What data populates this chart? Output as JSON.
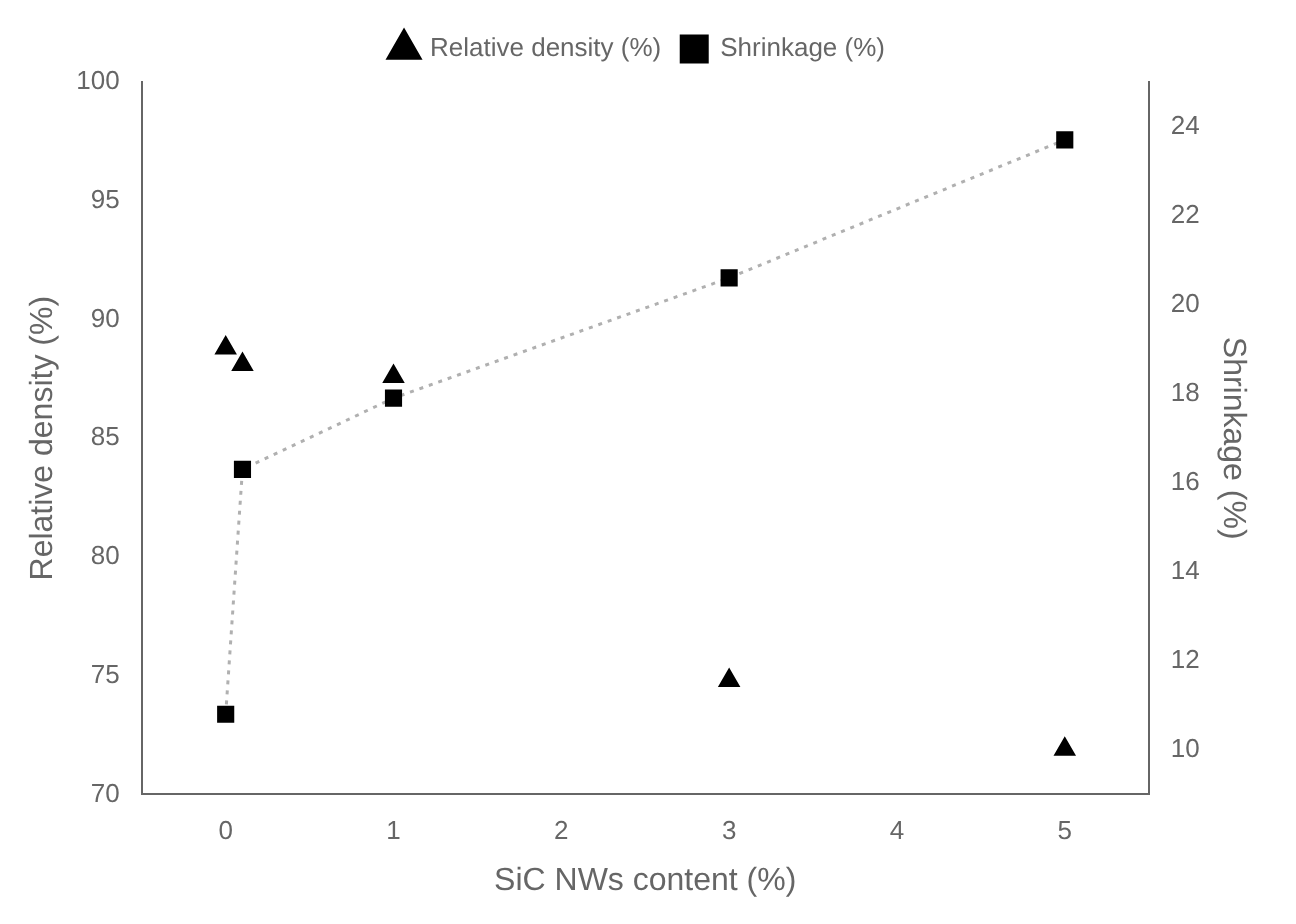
{
  "chart_data": {
    "type": "scatter",
    "xlabel": "SiC NWs content (%)",
    "ylabel": "Relative density (%)",
    "y2label": "Shrinkage (%)",
    "xlim": [
      -0.5,
      5.5
    ],
    "xticks": [
      0,
      1,
      2,
      3,
      4,
      5
    ],
    "ylim": [
      70,
      100
    ],
    "yticks": [
      70,
      75,
      80,
      85,
      90,
      95,
      100
    ],
    "y2lim": [
      9,
      25
    ],
    "y2ticks": [
      10,
      12,
      14,
      16,
      18,
      20,
      22,
      24
    ],
    "grid": false,
    "legend": "top",
    "series": [
      {
        "name": "Relative density (%)",
        "marker": "triangle",
        "color": "#000000",
        "x": [
          0,
          0.1,
          1,
          3,
          5
        ],
        "values": [
          88.8,
          88.1,
          87.6,
          74.8,
          71.9
        ]
      },
      {
        "name": "Shrinkage (%)",
        "type": "line",
        "axis": "y2",
        "marker": "square",
        "line_style": "dotted",
        "color": "#000000",
        "x": [
          0,
          0.1,
          1,
          3,
          5
        ],
        "values": [
          10.8,
          16.3,
          17.9,
          20.6,
          23.7
        ]
      }
    ]
  }
}
